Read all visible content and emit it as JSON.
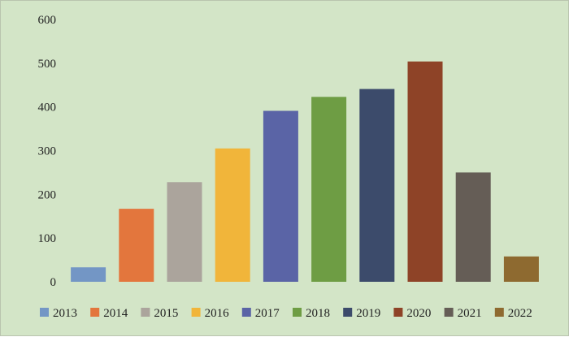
{
  "chart_data": {
    "type": "bar",
    "title": "",
    "xlabel": "",
    "ylabel": "",
    "categories": [
      "2013",
      "2014",
      "2015",
      "2016",
      "2017",
      "2018",
      "2019",
      "2020",
      "2021",
      "2022"
    ],
    "values": [
      33,
      167,
      228,
      305,
      391,
      423,
      441,
      504,
      250,
      58
    ],
    "colors": [
      "#7396c5",
      "#e3763d",
      "#aba49c",
      "#f1b53a",
      "#5a64a6",
      "#6e9d44",
      "#3c4b6b",
      "#8e4327",
      "#655d56",
      "#8e6a30"
    ],
    "ylim": [
      0,
      600
    ],
    "yticks": [
      0,
      100,
      200,
      300,
      400,
      500,
      600
    ],
    "grid": false,
    "legend_position": "bottom"
  }
}
